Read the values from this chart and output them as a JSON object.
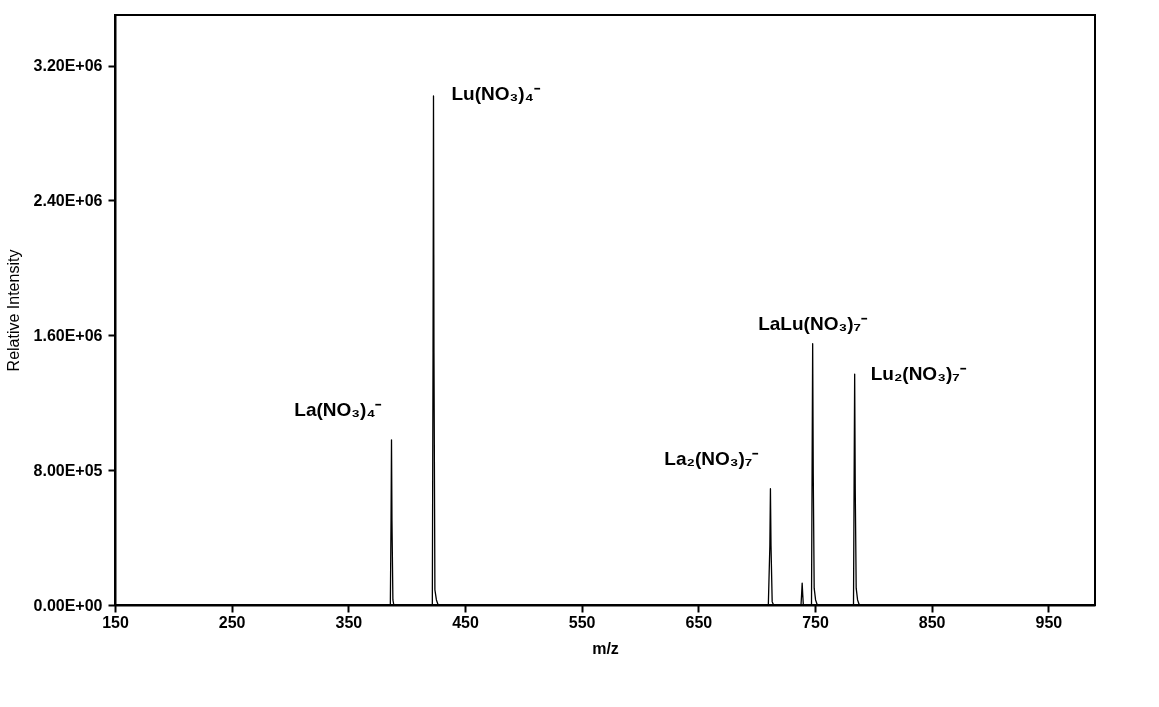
{
  "chart_data": {
    "type": "line",
    "xlabel": "m/z",
    "ylabel": "Relative Intensity",
    "x": [
      150,
      386,
      386.6,
      387,
      387.4,
      388.2,
      389,
      422,
      422.6,
      423,
      423.4,
      424.2,
      425.5,
      427,
      710,
      711.3,
      711.8,
      712.3,
      713.3,
      714.5,
      738,
      738.5,
      739,
      739.5,
      740,
      747,
      747.5,
      748,
      748.5,
      749.3,
      750.5,
      752,
      783,
      783.5,
      784,
      784.5,
      785.3,
      786.5,
      788,
      990
    ],
    "series": [
      {
        "color": "#000000",
        "values": [
          0,
          0,
          500000,
          980000,
          500000,
          30000,
          0,
          0,
          1500000,
          3020000,
          1500000,
          90000,
          30000,
          0,
          0,
          350000,
          690000,
          350000,
          20000,
          0,
          0,
          60000,
          130000,
          60000,
          0,
          0,
          780000,
          1550000,
          780000,
          100000,
          30000,
          0,
          0,
          690000,
          1370000,
          690000,
          100000,
          30000,
          0,
          0
        ]
      }
    ],
    "xlim": [
      150,
      990
    ],
    "xticks": [
      150,
      250,
      350,
      450,
      550,
      650,
      750,
      850,
      950
    ],
    "ylim": [
      0,
      3500000
    ],
    "yticks": [
      {
        "value": 0,
        "label": "0.00E+00"
      },
      {
        "value": 800000,
        "label": "8.00E+05"
      },
      {
        "value": 1600000,
        "label": "1.60E+06"
      },
      {
        "value": 2400000,
        "label": "2.40E+06"
      },
      {
        "value": 3200000,
        "label": "3.20E+06"
      }
    ],
    "annotations": [
      {
        "text": "La(NO₃)₄⁻",
        "x": 387,
        "y": 980000
      },
      {
        "text": "Lu(NO₃)₄⁻",
        "x": 423,
        "y": 3020000
      },
      {
        "text": "La₂(NO₃)₇⁻",
        "x": 711.8,
        "y": 690000
      },
      {
        "text": "LaLu(NO₃)₇⁻",
        "x": 748,
        "y": 1550000
      },
      {
        "text": "Lu₂(NO₃)₇⁻",
        "x": 784,
        "y": 1370000
      }
    ],
    "grid": false,
    "marker": "none",
    "line_style": "solid"
  }
}
